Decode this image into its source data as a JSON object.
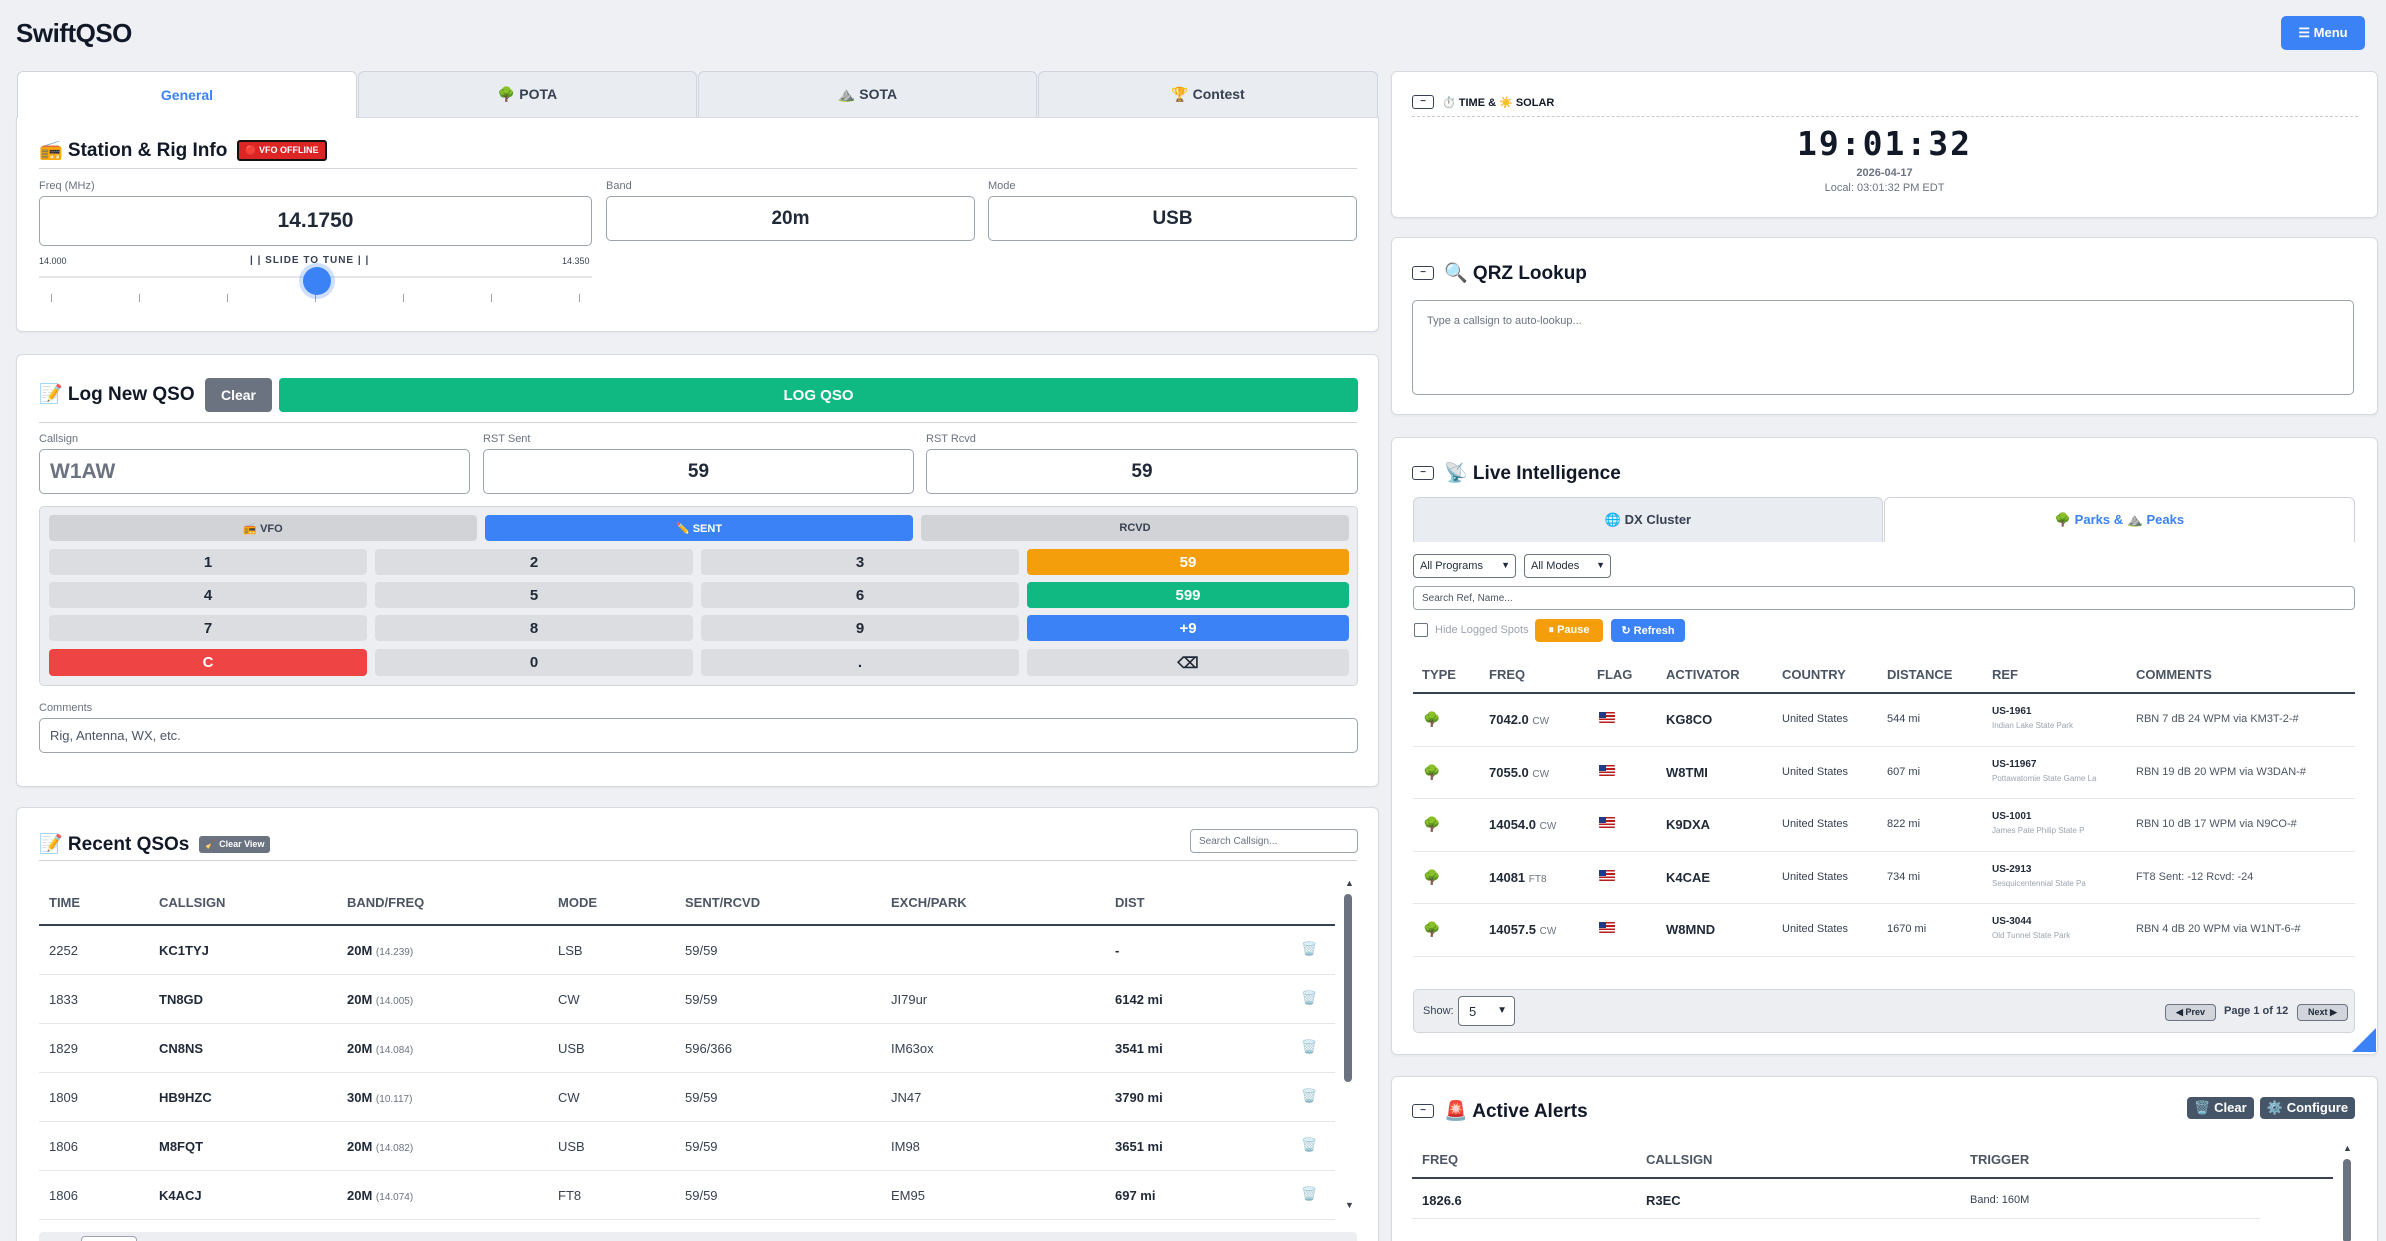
{
  "app": {
    "title": "SwiftQSO",
    "menu_label": "☰ Menu"
  },
  "tabs": [
    "General",
    "🌳 POTA",
    "⛰️ SOTA",
    "🏆 Contest"
  ],
  "station": {
    "title": "📻 Station & Rig Info",
    "vfo_badge": "🔴 VFO OFFLINE",
    "freq_label": "Freq (MHz)",
    "freq_value": "14.1750",
    "band_label": "Band",
    "band_value": "20m",
    "mode_label": "Mode",
    "mode_value": "USB",
    "slider_min": "14.000",
    "slider_max": "14.350",
    "slider_caption": "| | SLIDE TO TUNE | |",
    "slider_level": 0.5
  },
  "log": {
    "title": "📝 Log New QSO",
    "clear_label": "Clear",
    "log_label": "LOG QSO",
    "callsign_label": "Callsign",
    "callsign_placeholder": "W1AW",
    "rst_sent_label": "RST Sent",
    "rst_sent_value": "59",
    "rst_rcvd_label": "RST Rcvd",
    "rst_rcvd_value": "59",
    "pad_modes": [
      "📻 VFO",
      "✏️ SENT",
      "RCVD"
    ],
    "keys": [
      "1",
      "2",
      "3",
      "59",
      "4",
      "5",
      "6",
      "599",
      "7",
      "8",
      "9",
      "+9",
      "C",
      "0",
      ".",
      "⌫"
    ],
    "comments_label": "Comments",
    "comments_placeholder": "Rig, Antenna, WX, etc."
  },
  "recent": {
    "title": "📝 Recent QSOs",
    "clear_view": "🧹 Clear View",
    "search_placeholder": "Search Callsign...",
    "headers": [
      "TIME",
      "CALLSIGN",
      "BAND/FREQ",
      "MODE",
      "SENT/RCVD",
      "EXCH/PARK",
      "DIST"
    ],
    "rows": [
      {
        "time": "2252",
        "call": "KC1TYJ",
        "band": "20M",
        "freq": "(14.239)",
        "mode": "LSB",
        "rst": "59/59",
        "exch": "",
        "dist": "-"
      },
      {
        "time": "1833",
        "call": "TN8GD",
        "band": "20M",
        "freq": "(14.005)",
        "mode": "CW",
        "rst": "59/59",
        "exch": "JI79ur",
        "dist": "6142 mi"
      },
      {
        "time": "1829",
        "call": "CN8NS",
        "band": "20M",
        "freq": "(14.084)",
        "mode": "USB",
        "rst": "596/366",
        "exch": "IM63ox",
        "dist": "3541 mi"
      },
      {
        "time": "1809",
        "call": "HB9HZC",
        "band": "30M",
        "freq": "(10.117)",
        "mode": "CW",
        "rst": "59/59",
        "exch": "JN47",
        "dist": "3790 mi"
      },
      {
        "time": "1806",
        "call": "M8FQT",
        "band": "20M",
        "freq": "(14.082)",
        "mode": "USB",
        "rst": "59/59",
        "exch": "IM98",
        "dist": "3651 mi"
      },
      {
        "time": "1806",
        "call": "K4ACJ",
        "band": "20M",
        "freq": "(14.074)",
        "mode": "FT8",
        "rst": "59/59",
        "exch": "EM95",
        "dist": "697 mi"
      }
    ]
  },
  "time_solar": {
    "title": "⏱️ TIME & ☀️ SOLAR",
    "utc": "19:01:32",
    "date": "2026-04-17",
    "local": "Local: 03:01:32 PM EDT"
  },
  "qrz": {
    "title": "🔍 QRZ Lookup",
    "placeholder": "Type a callsign to auto-lookup..."
  },
  "intel": {
    "title": "📡 Live Intelligence",
    "tabs": [
      "🌐 DX Cluster",
      "🌳 Parks & ⛰️ Peaks"
    ],
    "programs_select": "All Programs",
    "modes_select": "All Modes",
    "search_placeholder": "Search Ref, Name...",
    "hide_logged": "Hide Logged Spots",
    "pause": "⏸ Pause",
    "refresh": "↻ Refresh",
    "headers": [
      "TYPE",
      "FREQ",
      "FLAG",
      "ACTIVATOR",
      "COUNTRY",
      "DISTANCE",
      "REF",
      "COMMENTS"
    ],
    "rows": [
      {
        "freq": "7042.0",
        "mode": "CW",
        "call": "KG8CO",
        "country": "United States",
        "dist": "544 mi",
        "ref": "US-1961",
        "park": "Indian Lake State Park",
        "comment": "RBN 7 dB 24 WPM via KM3T-2-#"
      },
      {
        "freq": "7055.0",
        "mode": "CW",
        "call": "W8TMI",
        "country": "United States",
        "dist": "607 mi",
        "ref": "US-11967",
        "park": "Pottawatomie State Game La",
        "comment": "RBN 19 dB 20 WPM via W3DAN-#"
      },
      {
        "freq": "14054.0",
        "mode": "CW",
        "call": "K9DXA",
        "country": "United States",
        "dist": "822 mi",
        "ref": "US-1001",
        "park": "James Pate Philip State P",
        "comment": "RBN 10 dB 17 WPM via N9CO-#"
      },
      {
        "freq": "14081",
        "mode": "FT8",
        "call": "K4CAE",
        "country": "United States",
        "dist": "734 mi",
        "ref": "US-2913",
        "park": "Sesquicentennial State Pa",
        "comment": "FT8 Sent: -12 Rcvd: -24"
      },
      {
        "freq": "14057.5",
        "mode": "CW",
        "call": "W8MND",
        "country": "United States",
        "dist": "1670 mi",
        "ref": "US-3044",
        "park": "Old Tunnel State Park",
        "comment": "RBN 4 dB 20 WPM via W1NT-6-#"
      }
    ],
    "show_label": "Show:",
    "show_value": "5",
    "prev": "◀ Prev",
    "page": "Page 1 of 12",
    "next": "Next ▶"
  },
  "alerts": {
    "title": "🚨 Active Alerts",
    "clear": "🗑️ Clear",
    "configure": "⚙️ Configure",
    "headers": [
      "FREQ",
      "CALLSIGN",
      "TRIGGER"
    ],
    "rows": [
      {
        "freq": "1826.6",
        "call": "R3EC",
        "trigger": "Band: 160M"
      }
    ]
  },
  "colors": {
    "accent": "#3b82f6",
    "green": "#10b981",
    "orange": "#f59e0b",
    "red": "#ef4444"
  }
}
